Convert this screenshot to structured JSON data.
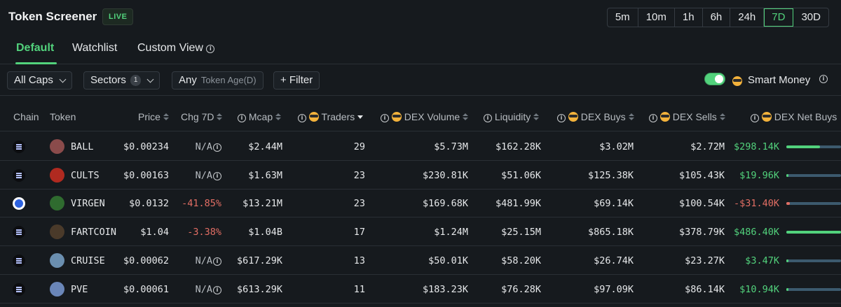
{
  "header": {
    "title": "Token Screener",
    "live_badge": "LIVE"
  },
  "timeframes": [
    {
      "label": "5m",
      "active": false
    },
    {
      "label": "10m",
      "active": false
    },
    {
      "label": "1h",
      "active": false
    },
    {
      "label": "6h",
      "active": false
    },
    {
      "label": "24h",
      "active": false
    },
    {
      "label": "7D",
      "active": true
    },
    {
      "label": "30D",
      "active": false
    }
  ],
  "tabs": [
    {
      "label": "Default",
      "active": true
    },
    {
      "label": "Watchlist",
      "active": false
    },
    {
      "label": "Custom View",
      "active": false
    }
  ],
  "filters": {
    "caps": "All Caps",
    "sectors": "Sectors",
    "sectors_count": "1",
    "age_prefix": "Any",
    "age_label": "Token Age(D)",
    "filter_button": "+ Filter",
    "smart_money_label": "Smart Money",
    "smart_money_on": true
  },
  "columns": {
    "chain": "Chain",
    "token": "Token",
    "price": "Price",
    "chg": "Chg 7D",
    "mcap": "Mcap",
    "traders": "Traders",
    "dex_volume": "DEX Volume",
    "liquidity": "Liquidity",
    "dex_buys": "DEX Buys",
    "dex_sells": "DEX Sells",
    "dex_net_buys": "DEX Net Buys"
  },
  "rows": [
    {
      "chain": "solana",
      "token": "BALL",
      "price": "$0.00234",
      "chg": "N/A",
      "chg_status": "na",
      "mcap": "$2.44M",
      "traders": "29",
      "dex_volume": "$5.73M",
      "liquidity": "$162.28K",
      "dex_buys": "$3.02M",
      "dex_sells": "$2.72M",
      "net": "$298.14K",
      "net_status": "pos",
      "net_fraction": 0.61
    },
    {
      "chain": "solana",
      "token": "CULTS",
      "price": "$0.00163",
      "chg": "N/A",
      "chg_status": "na",
      "mcap": "$1.63M",
      "traders": "23",
      "dex_volume": "$230.81K",
      "liquidity": "$51.06K",
      "dex_buys": "$125.38K",
      "dex_sells": "$105.43K",
      "net": "$19.96K",
      "net_status": "pos",
      "net_fraction": 0.04
    },
    {
      "chain": "base",
      "token": "VIRGEN",
      "price": "$0.0132",
      "chg": "-41.85%",
      "chg_status": "neg",
      "mcap": "$13.21M",
      "traders": "23",
      "dex_volume": "$169.68K",
      "liquidity": "$481.99K",
      "dex_buys": "$69.14K",
      "dex_sells": "$100.54K",
      "net": "-$31.40K",
      "net_status": "neg",
      "net_fraction": 0.06
    },
    {
      "chain": "solana",
      "token": "FARTCOIN",
      "price": "$1.04",
      "chg": "-3.38%",
      "chg_status": "neg",
      "mcap": "$1.04B",
      "traders": "17",
      "dex_volume": "$1.24M",
      "liquidity": "$25.15M",
      "dex_buys": "$865.18K",
      "dex_sells": "$378.79K",
      "net": "$486.40K",
      "net_status": "pos",
      "net_fraction": 1.0
    },
    {
      "chain": "solana",
      "token": "CRUISE",
      "price": "$0.00062",
      "chg": "N/A",
      "chg_status": "na",
      "mcap": "$617.29K",
      "traders": "13",
      "dex_volume": "$50.01K",
      "liquidity": "$58.20K",
      "dex_buys": "$26.74K",
      "dex_sells": "$23.27K",
      "net": "$3.47K",
      "net_status": "pos",
      "net_fraction": 0.01
    },
    {
      "chain": "solana",
      "token": "PVE",
      "price": "$0.00061",
      "chg": "N/A",
      "chg_status": "na",
      "mcap": "$613.29K",
      "traders": "11",
      "dex_volume": "$183.23K",
      "liquidity": "$76.28K",
      "dex_buys": "$97.09K",
      "dex_sells": "$86.14K",
      "net": "$10.94K",
      "net_status": "pos",
      "net_fraction": 0.02
    }
  ],
  "colors": {
    "positive": "#52d27c",
    "negative": "#e26e64",
    "accent": "#52d27c",
    "bar_track": "#3c5a6e"
  },
  "icons": [
    "info-icon",
    "chevron-down-icon",
    "smart-money-shades-icon",
    "sort-icon",
    "solana-chain-icon",
    "base-chain-icon"
  ]
}
